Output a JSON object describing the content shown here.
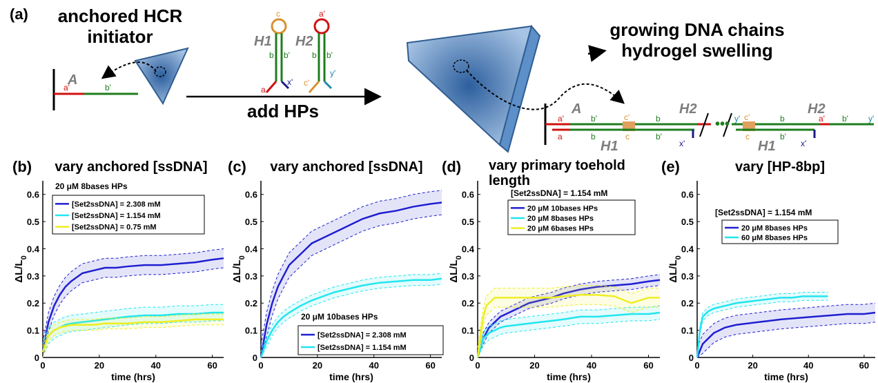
{
  "schematic": {
    "panel_label": "(a)",
    "initiator_title": [
      "anchored HCR",
      "initiator"
    ],
    "add_label": "add HPs",
    "growth_title": [
      "growing DNA chains",
      "hydrogel swelling"
    ],
    "strand_A": "A",
    "hp_H1": "H1",
    "hp_H2": "H2",
    "domains": {
      "a": "a",
      "a_prime": "a'",
      "b": "b",
      "b_prime": "b'",
      "c": "c",
      "c_prime": "c'",
      "x_prime": "x'",
      "y_prime": "y'"
    },
    "colors": {
      "a": "#d01010",
      "b": "#1e7d1e",
      "c": "#d89030",
      "x": "#1a1a8a",
      "y": "#1a8ab0",
      "gel": "#5b8ec9"
    }
  },
  "chart_data": [
    {
      "panel": "(b)",
      "type": "line",
      "title": "vary anchored [ssDNA]",
      "xlabel": "time (hrs)",
      "ylabel": "ΔL/L0",
      "xlim": [
        0,
        64
      ],
      "ylim": [
        0,
        0.65
      ],
      "xticks": [
        0,
        20,
        40,
        60
      ],
      "yticks": [
        0,
        0.1,
        0.2,
        0.3,
        0.4,
        0.5,
        0.6
      ],
      "legend_title": "20 μM 8bases HPs",
      "legend_position": "top-left",
      "series": [
        {
          "name": "[Set2ssDNA] = 2.308 mM",
          "color": "#1f1fd0",
          "x": [
            0,
            2,
            4,
            6,
            8,
            10,
            14,
            18,
            22,
            26,
            30,
            36,
            42,
            48,
            54,
            60,
            64
          ],
          "y": [
            0.02,
            0.13,
            0.19,
            0.23,
            0.26,
            0.28,
            0.31,
            0.32,
            0.33,
            0.33,
            0.335,
            0.34,
            0.34,
            0.345,
            0.35,
            0.36,
            0.365
          ],
          "band": 0.035
        },
        {
          "name": "[Set2ssDNA] = 1.154 mM",
          "color": "#22e5ee",
          "x": [
            0,
            2,
            4,
            6,
            8,
            10,
            14,
            18,
            22,
            26,
            30,
            36,
            42,
            48,
            54,
            60,
            64
          ],
          "y": [
            0.02,
            0.08,
            0.1,
            0.11,
            0.12,
            0.125,
            0.13,
            0.135,
            0.14,
            0.145,
            0.15,
            0.155,
            0.155,
            0.16,
            0.16,
            0.165,
            0.165
          ],
          "band": 0.03
        },
        {
          "name": "[Set2ssDNA] = 0.75 mM",
          "color": "#eeee22",
          "x": [
            0,
            2,
            4,
            6,
            8,
            10,
            14,
            18,
            22,
            26,
            30,
            36,
            42,
            48,
            54,
            60,
            64
          ],
          "y": [
            0.02,
            0.08,
            0.1,
            0.11,
            0.115,
            0.12,
            0.12,
            0.12,
            0.125,
            0.125,
            0.125,
            0.13,
            0.13,
            0.135,
            0.14,
            0.14,
            0.14
          ],
          "band": 0.02
        }
      ]
    },
    {
      "panel": "(c)",
      "type": "line",
      "title": "vary anchored [ssDNA]",
      "xlabel": "time (hrs)",
      "ylabel": "ΔL/L0",
      "xlim": [
        0,
        64
      ],
      "ylim": [
        0,
        0.65
      ],
      "xticks": [
        0,
        20,
        40,
        60
      ],
      "yticks": [
        0,
        0.1,
        0.2,
        0.3,
        0.4,
        0.5,
        0.6
      ],
      "legend_title": "20 μM 10bases HPs",
      "legend_position": "bottom-right",
      "series": [
        {
          "name": "[Set2ssDNA] = 2.308 mM",
          "color": "#1f1fd0",
          "x": [
            0,
            2,
            4,
            6,
            8,
            10,
            14,
            18,
            22,
            26,
            30,
            36,
            42,
            48,
            54,
            60,
            64
          ],
          "y": [
            0.0,
            0.12,
            0.2,
            0.26,
            0.3,
            0.34,
            0.38,
            0.42,
            0.44,
            0.46,
            0.48,
            0.51,
            0.53,
            0.54,
            0.555,
            0.565,
            0.57
          ],
          "band": 0.045
        },
        {
          "name": "[Set2ssDNA] = 1.154 mM",
          "color": "#22e5ee",
          "x": [
            0,
            2,
            4,
            6,
            8,
            10,
            14,
            18,
            22,
            26,
            30,
            36,
            42,
            48,
            54,
            60,
            64
          ],
          "y": [
            0.0,
            0.06,
            0.1,
            0.13,
            0.15,
            0.165,
            0.19,
            0.21,
            0.225,
            0.24,
            0.25,
            0.265,
            0.275,
            0.28,
            0.285,
            0.285,
            0.29
          ],
          "band": 0.02
        }
      ]
    },
    {
      "panel": "(d)",
      "type": "line",
      "title": "vary primary toehold length",
      "xlabel": "time (hrs)",
      "ylabel": "ΔL/L0",
      "xlim": [
        0,
        64
      ],
      "ylim": [
        0,
        0.65
      ],
      "xticks": [
        0,
        20,
        40,
        60
      ],
      "yticks": [
        0,
        0.1,
        0.2,
        0.3,
        0.4,
        0.5,
        0.6
      ],
      "legend_title": "[Set2ssDNA] = 1.154 mM",
      "legend_position": "top-left",
      "series": [
        {
          "name": "20 μM 10bases HPs",
          "color": "#1f1fd0",
          "x": [
            0,
            2,
            4,
            6,
            8,
            10,
            14,
            18,
            22,
            26,
            30,
            36,
            42,
            48,
            54,
            60,
            64
          ],
          "y": [
            0.0,
            0.07,
            0.11,
            0.13,
            0.15,
            0.16,
            0.18,
            0.2,
            0.21,
            0.22,
            0.235,
            0.25,
            0.26,
            0.265,
            0.27,
            0.28,
            0.285
          ],
          "band": 0.02
        },
        {
          "name": "20 μM 8bases HPs",
          "color": "#22e5ee",
          "x": [
            0,
            2,
            4,
            6,
            8,
            10,
            14,
            18,
            22,
            26,
            30,
            36,
            42,
            48,
            54,
            60,
            64
          ],
          "y": [
            0.0,
            0.07,
            0.09,
            0.1,
            0.11,
            0.115,
            0.12,
            0.125,
            0.13,
            0.135,
            0.14,
            0.15,
            0.15,
            0.155,
            0.16,
            0.16,
            0.165
          ],
          "band": 0.025
        },
        {
          "name": "20 μM 6bases HPs",
          "color": "#eeee22",
          "x": [
            0,
            1,
            2,
            3,
            4,
            5,
            6,
            8,
            10,
            14,
            18,
            22,
            26,
            30,
            36,
            42,
            48,
            54,
            60,
            64
          ],
          "y": [
            0.0,
            0.08,
            0.15,
            0.19,
            0.2,
            0.21,
            0.22,
            0.22,
            0.22,
            0.22,
            0.22,
            0.22,
            0.22,
            0.225,
            0.23,
            0.23,
            0.225,
            0.2,
            0.22,
            0.22
          ],
          "band": 0.035
        }
      ]
    },
    {
      "panel": "(e)",
      "type": "line",
      "title": "vary [HP-8bp]",
      "xlabel": "time (hrs)",
      "ylabel": "ΔL/L0",
      "xlim": [
        0,
        64
      ],
      "ylim": [
        0,
        0.65
      ],
      "xticks": [
        0,
        20,
        40,
        60
      ],
      "yticks": [
        0,
        0.1,
        0.2,
        0.3,
        0.4,
        0.5,
        0.6
      ],
      "legend_title": "[Set2ssDNA] = 1.154 mM",
      "legend_position": "top-left",
      "series": [
        {
          "name": "20 μM 8bases HPs",
          "color": "#1f1fd0",
          "x": [
            0,
            2,
            4,
            6,
            8,
            10,
            14,
            18,
            22,
            26,
            30,
            36,
            42,
            48,
            54,
            60,
            64
          ],
          "y": [
            0.0,
            0.05,
            0.07,
            0.09,
            0.1,
            0.11,
            0.12,
            0.125,
            0.13,
            0.135,
            0.14,
            0.145,
            0.15,
            0.155,
            0.16,
            0.16,
            0.165
          ],
          "band": 0.035
        },
        {
          "name": "60 μM 8bases HPs",
          "color": "#22e5ee",
          "x": [
            0,
            1,
            2,
            3,
            4,
            6,
            8,
            10,
            14,
            18,
            22,
            26,
            30,
            34,
            38,
            42,
            46,
            47
          ],
          "y": [
            0.0,
            0.1,
            0.15,
            0.16,
            0.17,
            0.18,
            0.185,
            0.19,
            0.2,
            0.205,
            0.21,
            0.215,
            0.22,
            0.22,
            0.225,
            0.225,
            0.225,
            0.225
          ],
          "band": 0.015
        }
      ]
    }
  ]
}
